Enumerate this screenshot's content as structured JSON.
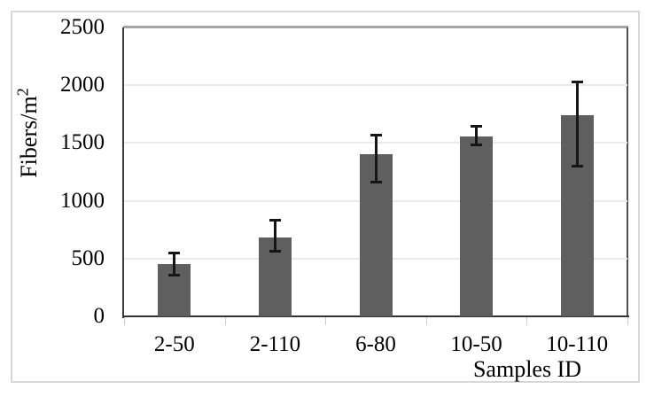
{
  "chart_data": {
    "type": "bar",
    "categories": [
      "2-50",
      "2-110",
      "6-80",
      "10-50",
      "10-110"
    ],
    "values": [
      450,
      680,
      1405,
      1560,
      1740
    ],
    "error_low": [
      365,
      575,
      1175,
      1495,
      1315
    ],
    "error_high": [
      535,
      820,
      1560,
      1635,
      2020
    ],
    "title": "",
    "xlabel": "Samples ID",
    "ylabel": {
      "base": "Fibers/m",
      "superscript": "2"
    },
    "ylim": [
      0,
      2500
    ],
    "yticks": [
      0,
      500,
      1000,
      1500,
      2000,
      2500
    ],
    "ytick_labels": [
      "0",
      "500",
      "1000",
      "1500",
      "2000",
      "2500"
    ],
    "grid": "horizontal",
    "legend": "none",
    "colors": {
      "bar_fill": "#5f5f5f",
      "error_bar": "#161616",
      "gridline": "#eaeaea",
      "axis": "#3b3b3b",
      "plot_top_border": "#a6a6a6",
      "plot_right_border": "#4f4f4f",
      "figure_border": "#d8d8d8",
      "text": "#000000"
    }
  }
}
